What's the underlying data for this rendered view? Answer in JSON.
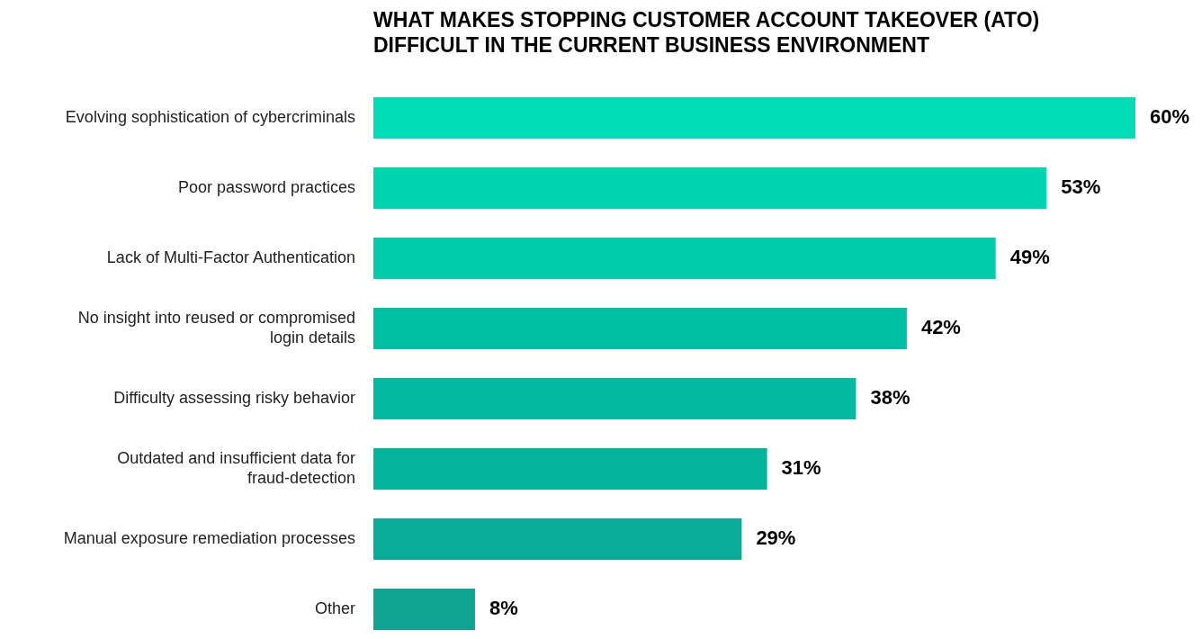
{
  "chart_data": {
    "type": "bar",
    "orientation": "horizontal",
    "title": "WHAT MAKES STOPPING CUSTOMER ACCOUNT TAKEOVER (ATO) DIFFICULT IN THE CURRENT BUSINESS ENVIRONMENT",
    "categories": [
      "Evolving sophistication of cybercriminals",
      "Poor password practices",
      "Lack of Multi-Factor Authentication",
      "No insight into reused or compromised login details",
      "Difficulty assessing risky behavior",
      "Outdated and insufficient data for fraud-detection",
      "Manual exposure remediation processes",
      "Other"
    ],
    "values": [
      60,
      53,
      49,
      42,
      38,
      31,
      29,
      8
    ],
    "value_labels": [
      "60%",
      "53%",
      "49%",
      "42%",
      "38%",
      "31%",
      "29%",
      "8%"
    ],
    "colors": [
      "#00dcb4",
      "#00d5b0",
      "#00cdaa",
      "#00c1a3",
      "#03baa0",
      "#05b39a",
      "#08ad97",
      "#0ea592"
    ]
  }
}
